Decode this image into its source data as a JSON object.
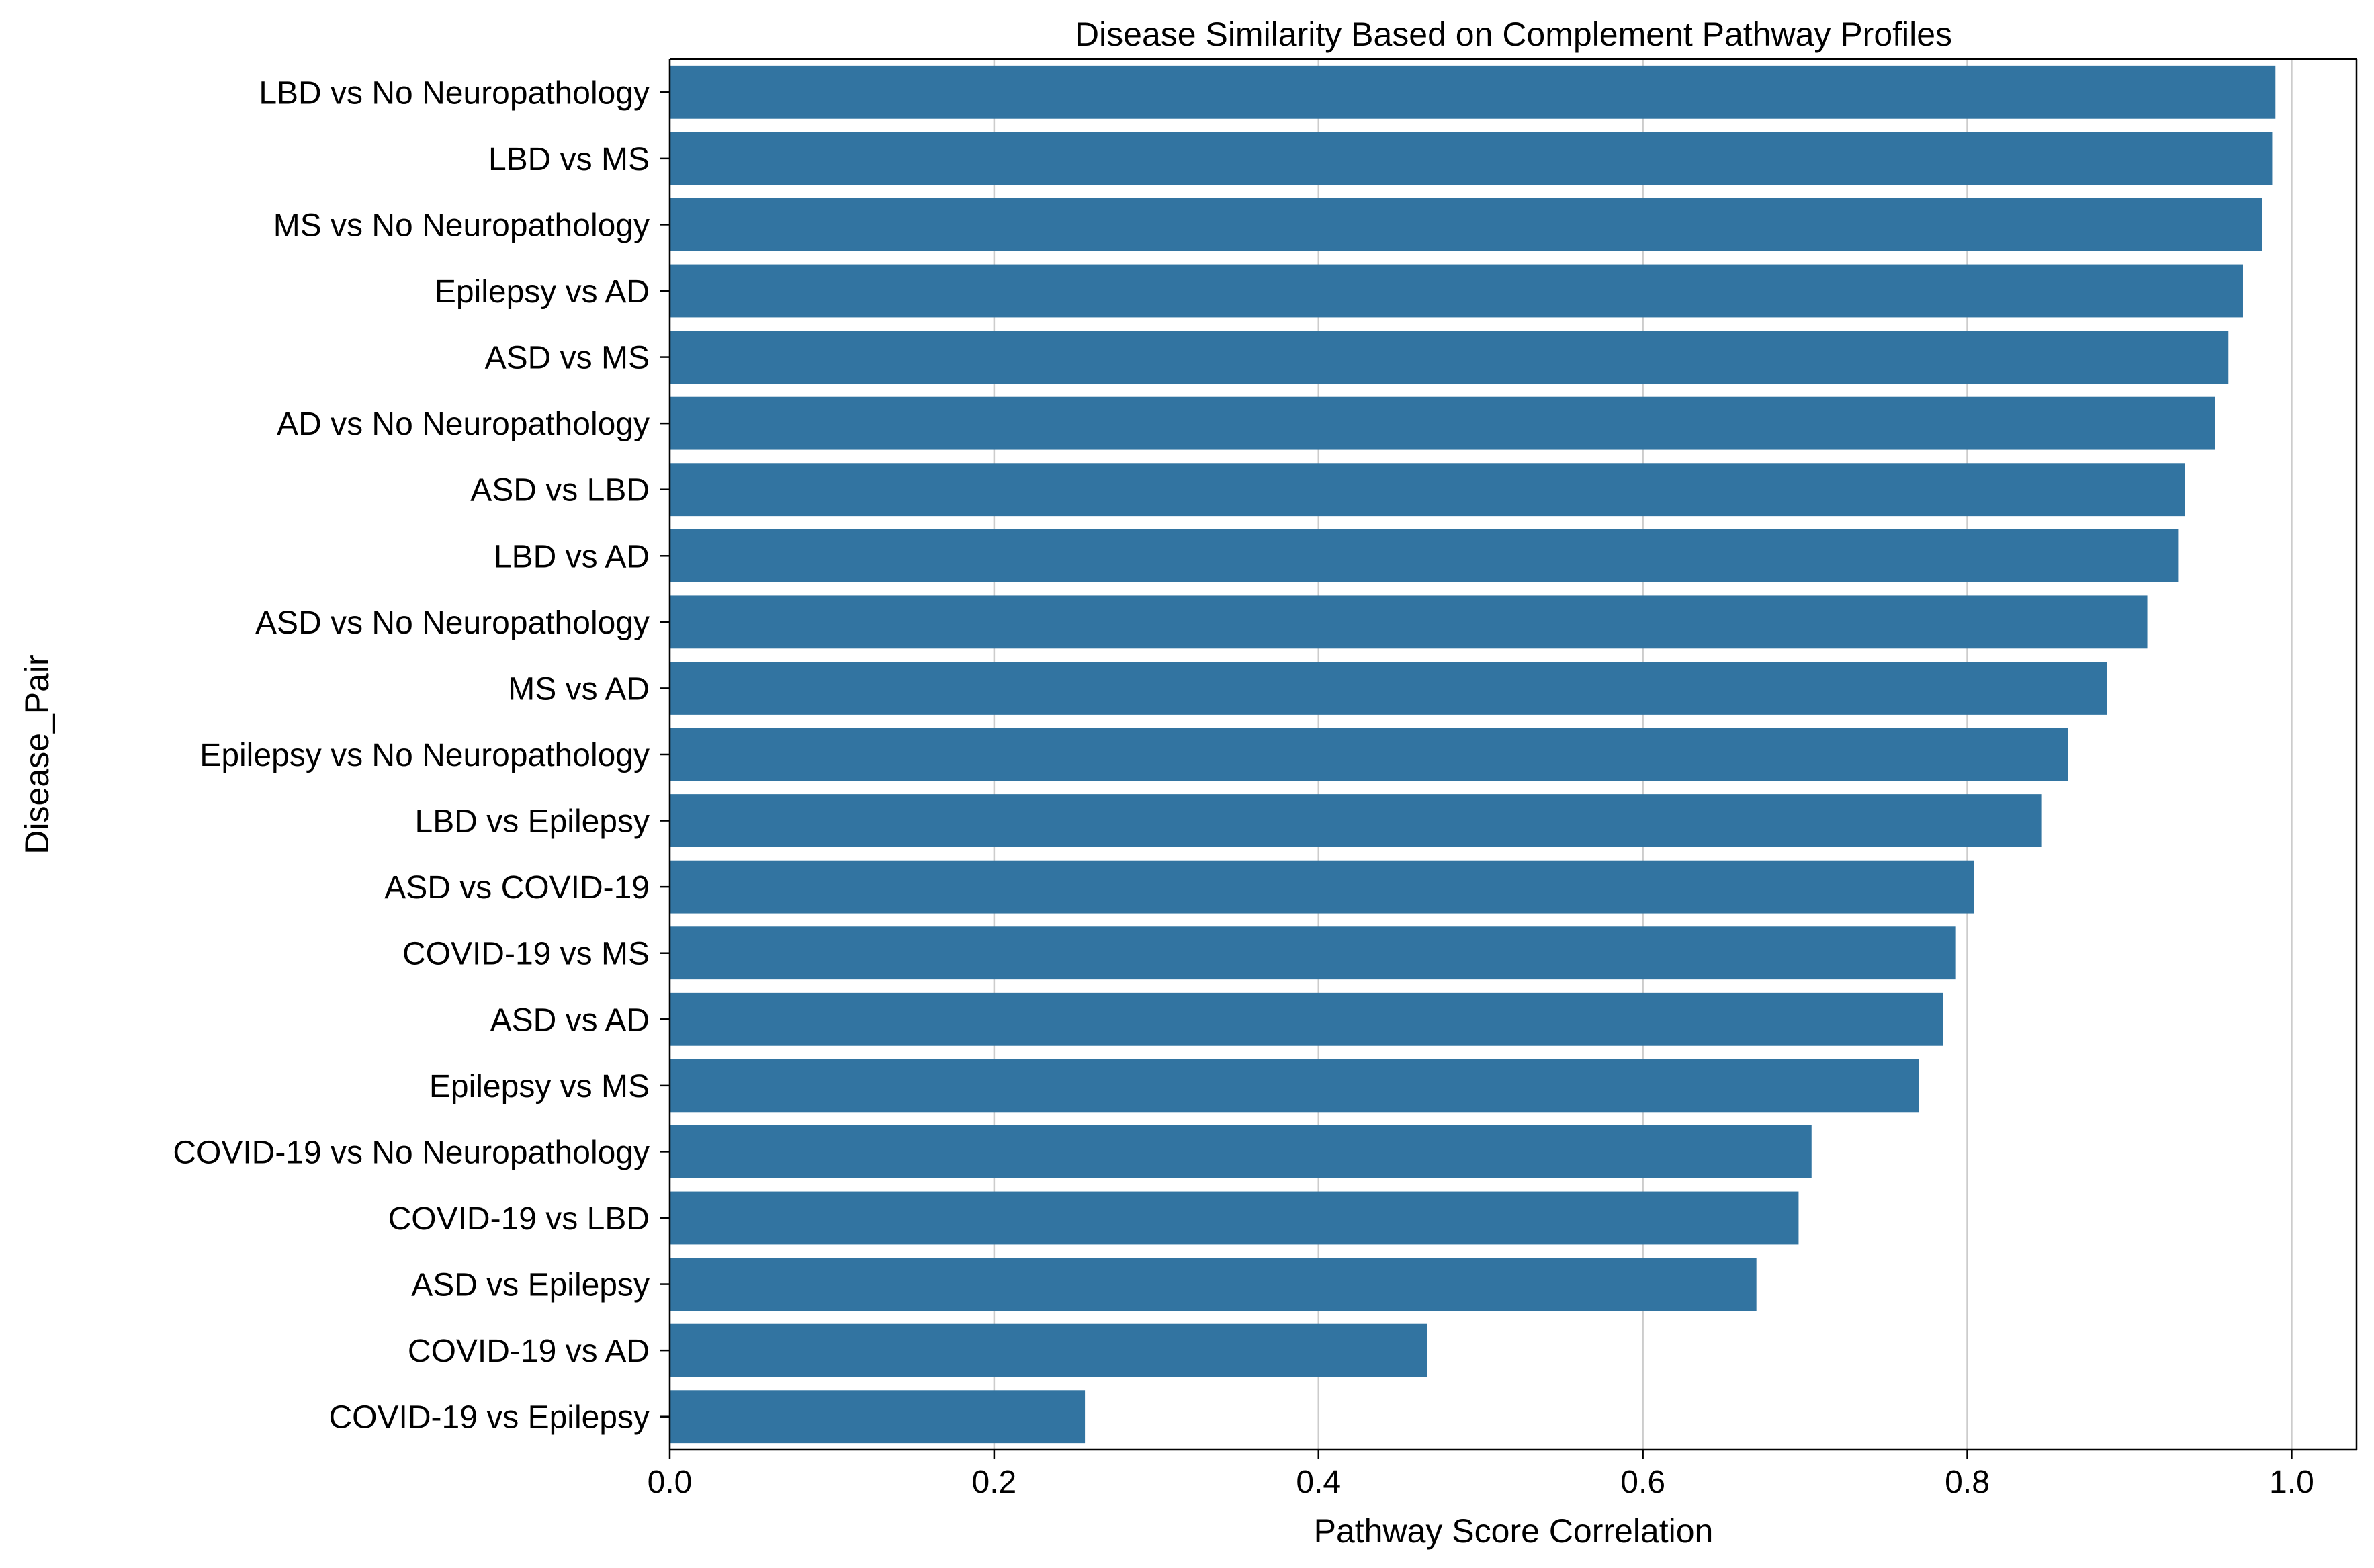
{
  "chart_data": {
    "type": "bar",
    "orientation": "horizontal",
    "title": "Disease Similarity Based on Complement Pathway Profiles",
    "xlabel": "Pathway Score Correlation",
    "ylabel": "Disease_Pair",
    "xlim": [
      0.0,
      1.04
    ],
    "xticks": [
      "0.0",
      "0.2",
      "0.4",
      "0.6",
      "0.8",
      "1.0"
    ],
    "grid": "vertical",
    "bar_color": "#3274a1",
    "categories": [
      "LBD vs No Neuropathology",
      "LBD vs MS",
      "MS vs No Neuropathology",
      "Epilepsy vs AD",
      "ASD vs MS",
      "AD vs No Neuropathology",
      "ASD vs LBD",
      "LBD vs AD",
      "ASD vs No Neuropathology",
      "MS vs AD",
      "Epilepsy vs No Neuropathology",
      "LBD vs Epilepsy",
      "ASD vs COVID-19",
      "COVID-19 vs MS",
      "ASD vs AD",
      "Epilepsy vs MS",
      "COVID-19 vs No Neuropathology",
      "COVID-19 vs LBD",
      "ASD vs Epilepsy",
      "COVID-19 vs AD",
      "COVID-19 vs Epilepsy"
    ],
    "values": [
      0.99,
      0.988,
      0.982,
      0.97,
      0.961,
      0.953,
      0.934,
      0.93,
      0.911,
      0.886,
      0.862,
      0.846,
      0.804,
      0.793,
      0.785,
      0.77,
      0.704,
      0.696,
      0.67,
      0.467,
      0.256
    ]
  }
}
